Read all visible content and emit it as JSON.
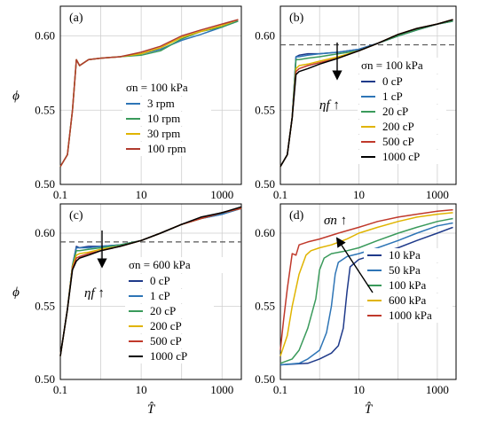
{
  "colors": {
    "grid": "#cfcfcf",
    "dashed": "#555555",
    "series_3rpm": "#2e75b6",
    "series_10rpm": "#3a9a5b",
    "series_30rpm": "#e0b400",
    "series_100rpm": "#b03a2e",
    "series_0cP": "#1f3a8a",
    "series_1cP": "#2e75b6",
    "series_20cP": "#3a9a5b",
    "series_200cP": "#e0b400",
    "series_500cP": "#c0392b",
    "series_1000cP": "#000000",
    "series_10kPa": "#1f3a8a",
    "series_50kPa": "#2e75b6",
    "series_100kPa": "#3a9a5b",
    "series_600kPa": "#e0b400",
    "series_1000kPa": "#c0392b"
  },
  "chart_data": [
    {
      "panel": "(a)",
      "type": "line",
      "xscale": "log",
      "xlim": [
        0.1,
        3000
      ],
      "ylim": [
        0.5,
        0.62
      ],
      "xticks": [
        "0.1",
        "10",
        "1000"
      ],
      "yticks": [
        "0.50",
        "0.55",
        "0.60"
      ],
      "ylabel": "ϕ",
      "xlabel": "",
      "legend_title": "σn = 100 kPa",
      "legend_position": "right-middle",
      "series": [
        {
          "name": "3 rpm",
          "color_key": "series_3rpm",
          "x": [
            0.1,
            0.15,
            0.2,
            0.25,
            0.3,
            0.5,
            1,
            3,
            10,
            30,
            100,
            300,
            1000,
            2500
          ],
          "y": [
            0.512,
            0.52,
            0.55,
            0.584,
            0.58,
            0.584,
            0.585,
            0.586,
            0.588,
            0.591,
            0.597,
            0.601,
            0.606,
            0.61
          ]
        },
        {
          "name": "10 rpm",
          "color_key": "series_10rpm",
          "x": [
            0.1,
            0.15,
            0.2,
            0.25,
            0.3,
            0.5,
            1,
            3,
            10,
            30,
            100,
            300,
            1000,
            2500
          ],
          "y": [
            0.512,
            0.52,
            0.55,
            0.584,
            0.58,
            0.584,
            0.585,
            0.586,
            0.587,
            0.59,
            0.598,
            0.603,
            0.606,
            0.61
          ]
        },
        {
          "name": "30 rpm",
          "color_key": "series_30rpm",
          "x": [
            0.1,
            0.15,
            0.2,
            0.25,
            0.3,
            0.5,
            1,
            3,
            10,
            30,
            100,
            300,
            1000,
            2500
          ],
          "y": [
            0.512,
            0.52,
            0.55,
            0.584,
            0.58,
            0.584,
            0.585,
            0.586,
            0.588,
            0.592,
            0.599,
            0.603,
            0.607,
            0.611
          ]
        },
        {
          "name": "100 rpm",
          "color_key": "series_100rpm",
          "x": [
            0.1,
            0.15,
            0.2,
            0.25,
            0.3,
            0.5,
            1,
            3,
            10,
            30,
            100,
            300,
            1000,
            2500
          ],
          "y": [
            0.512,
            0.52,
            0.55,
            0.584,
            0.58,
            0.584,
            0.585,
            0.586,
            0.589,
            0.593,
            0.6,
            0.604,
            0.608,
            0.611
          ]
        }
      ]
    },
    {
      "panel": "(b)",
      "type": "line",
      "xscale": "log",
      "xlim": [
        0.1,
        3000
      ],
      "ylim": [
        0.5,
        0.62
      ],
      "xticks": [
        "0.1",
        "10",
        "1000"
      ],
      "yticks": [
        "0.50",
        "0.55",
        "0.60"
      ],
      "dashed_y": 0.594,
      "legend_title": "σn = 100 kPa",
      "legend_position": "right-middle",
      "annotation": "ηf ↑",
      "series": [
        {
          "name": "0 cP",
          "color_key": "series_0cP",
          "x": [
            0.1,
            0.15,
            0.2,
            0.25,
            0.3,
            0.5,
            1,
            3,
            10,
            30,
            100,
            300,
            1000,
            2500
          ],
          "y": [
            0.512,
            0.52,
            0.545,
            0.586,
            0.587,
            0.588,
            0.588,
            0.589,
            0.591,
            0.595,
            0.6,
            0.604,
            0.608,
            0.61
          ]
        },
        {
          "name": "1 cP",
          "color_key": "series_1cP",
          "x": [
            0.1,
            0.15,
            0.2,
            0.25,
            0.3,
            0.5,
            1,
            3,
            10,
            30,
            100,
            300,
            1000,
            2500
          ],
          "y": [
            0.512,
            0.52,
            0.545,
            0.586,
            0.586,
            0.587,
            0.588,
            0.589,
            0.591,
            0.595,
            0.6,
            0.604,
            0.608,
            0.61
          ]
        },
        {
          "name": "20 cP",
          "color_key": "series_20cP",
          "x": [
            0.1,
            0.15,
            0.2,
            0.25,
            0.3,
            0.5,
            1,
            3,
            10,
            30,
            100,
            300,
            1000,
            2500
          ],
          "y": [
            0.512,
            0.52,
            0.545,
            0.584,
            0.584,
            0.585,
            0.586,
            0.588,
            0.59,
            0.595,
            0.6,
            0.604,
            0.608,
            0.61
          ]
        },
        {
          "name": "200 cP",
          "color_key": "series_200cP",
          "x": [
            0.1,
            0.15,
            0.2,
            0.25,
            0.3,
            0.5,
            1,
            3,
            10,
            30,
            100,
            300,
            1000,
            2500
          ],
          "y": [
            0.512,
            0.52,
            0.545,
            0.578,
            0.58,
            0.581,
            0.583,
            0.586,
            0.59,
            0.595,
            0.601,
            0.605,
            0.608,
            0.611
          ]
        },
        {
          "name": "500 cP",
          "color_key": "series_500cP",
          "x": [
            0.1,
            0.15,
            0.2,
            0.25,
            0.3,
            0.5,
            1,
            3,
            10,
            30,
            100,
            300,
            1000,
            2500
          ],
          "y": [
            0.512,
            0.52,
            0.545,
            0.576,
            0.578,
            0.58,
            0.582,
            0.585,
            0.59,
            0.595,
            0.601,
            0.605,
            0.608,
            0.611
          ]
        },
        {
          "name": "1000 cP",
          "color_key": "series_1000cP",
          "x": [
            0.1,
            0.15,
            0.2,
            0.25,
            0.3,
            0.5,
            1,
            3,
            10,
            30,
            100,
            300,
            1000,
            2500
          ],
          "y": [
            0.512,
            0.52,
            0.545,
            0.574,
            0.576,
            0.578,
            0.581,
            0.585,
            0.59,
            0.595,
            0.601,
            0.605,
            0.608,
            0.611
          ]
        }
      ]
    },
    {
      "panel": "(c)",
      "type": "line",
      "xscale": "log",
      "xlim": [
        0.1,
        3000
      ],
      "ylim": [
        0.5,
        0.62
      ],
      "xticks": [
        "0.1",
        "10",
        "1000"
      ],
      "yticks": [
        "0.50",
        "0.55",
        "0.60"
      ],
      "ylabel": "ϕ",
      "xlabel": "T̂",
      "dashed_y": 0.594,
      "legend_title": "σn = 600 kPa",
      "legend_position": "right-middle",
      "annotation": "ηf ↑",
      "series": [
        {
          "name": "0 cP",
          "color_key": "series_0cP",
          "x": [
            0.1,
            0.15,
            0.2,
            0.25,
            0.3,
            0.5,
            1,
            3,
            10,
            30,
            100,
            300,
            1000,
            3000
          ],
          "y": [
            0.516,
            0.548,
            0.578,
            0.591,
            0.59,
            0.591,
            0.591,
            0.592,
            0.595,
            0.6,
            0.606,
            0.61,
            0.613,
            0.617
          ]
        },
        {
          "name": "1 cP",
          "color_key": "series_1cP",
          "x": [
            0.1,
            0.15,
            0.2,
            0.25,
            0.3,
            0.5,
            1,
            3,
            10,
            30,
            100,
            300,
            1000,
            3000
          ],
          "y": [
            0.516,
            0.548,
            0.578,
            0.59,
            0.59,
            0.59,
            0.591,
            0.592,
            0.595,
            0.6,
            0.606,
            0.61,
            0.613,
            0.617
          ]
        },
        {
          "name": "20 cP",
          "color_key": "series_20cP",
          "x": [
            0.1,
            0.15,
            0.2,
            0.25,
            0.3,
            0.5,
            1,
            3,
            10,
            30,
            100,
            300,
            1000,
            3000
          ],
          "y": [
            0.516,
            0.548,
            0.578,
            0.588,
            0.588,
            0.589,
            0.59,
            0.592,
            0.595,
            0.6,
            0.606,
            0.61,
            0.614,
            0.617
          ]
        },
        {
          "name": "200 cP",
          "color_key": "series_200cP",
          "x": [
            0.1,
            0.15,
            0.2,
            0.25,
            0.3,
            0.5,
            1,
            3,
            10,
            30,
            100,
            300,
            1000,
            3000
          ],
          "y": [
            0.516,
            0.548,
            0.577,
            0.585,
            0.586,
            0.587,
            0.589,
            0.591,
            0.595,
            0.6,
            0.606,
            0.61,
            0.614,
            0.617
          ]
        },
        {
          "name": "500 cP",
          "color_key": "series_500cP",
          "x": [
            0.1,
            0.15,
            0.2,
            0.25,
            0.3,
            0.5,
            1,
            3,
            10,
            30,
            100,
            300,
            1000,
            3000
          ],
          "y": [
            0.516,
            0.548,
            0.576,
            0.583,
            0.584,
            0.586,
            0.588,
            0.591,
            0.595,
            0.6,
            0.606,
            0.61,
            0.614,
            0.617
          ]
        },
        {
          "name": "1000 cP",
          "color_key": "series_1000cP",
          "x": [
            0.1,
            0.15,
            0.2,
            0.25,
            0.3,
            0.5,
            1,
            3,
            10,
            30,
            100,
            300,
            1000,
            3000
          ],
          "y": [
            0.516,
            0.548,
            0.575,
            0.581,
            0.583,
            0.585,
            0.588,
            0.591,
            0.595,
            0.6,
            0.606,
            0.611,
            0.614,
            0.618
          ]
        }
      ]
    },
    {
      "panel": "(d)",
      "type": "line",
      "xscale": "log",
      "xlim": [
        0.1,
        3000
      ],
      "ylim": [
        0.5,
        0.62
      ],
      "xticks": [
        "0.1",
        "10",
        "1000"
      ],
      "yticks": [
        "0.50",
        "0.55",
        "0.60"
      ],
      "xlabel": "T̂",
      "legend_title": "",
      "legend_position": "right-middle",
      "annotation": "σn ↑",
      "series": [
        {
          "name": "10 kPa",
          "color_key": "series_10kPa",
          "x": [
            0.1,
            0.5,
            1,
            2,
            3,
            4,
            5,
            6,
            10,
            30,
            100,
            300,
            1000,
            2500
          ],
          "y": [
            0.51,
            0.511,
            0.514,
            0.518,
            0.523,
            0.535,
            0.56,
            0.577,
            0.582,
            0.586,
            0.59,
            0.595,
            0.6,
            0.604
          ]
        },
        {
          "name": "50 kPa",
          "color_key": "series_50kPa",
          "x": [
            0.1,
            0.3,
            0.5,
            1,
            1.5,
            2,
            2.5,
            3,
            5,
            10,
            30,
            100,
            300,
            1000,
            2500
          ],
          "y": [
            0.51,
            0.511,
            0.514,
            0.52,
            0.532,
            0.55,
            0.572,
            0.58,
            0.584,
            0.586,
            0.59,
            0.595,
            0.6,
            0.605,
            0.607
          ]
        },
        {
          "name": "100 kPa",
          "color_key": "series_100kPa",
          "x": [
            0.1,
            0.2,
            0.3,
            0.5,
            0.8,
            1,
            1.3,
            2,
            5,
            10,
            30,
            100,
            300,
            1000,
            2500
          ],
          "y": [
            0.511,
            0.514,
            0.52,
            0.535,
            0.555,
            0.575,
            0.583,
            0.586,
            0.588,
            0.59,
            0.595,
            0.6,
            0.604,
            0.608,
            0.61
          ]
        },
        {
          "name": "600 kPa",
          "color_key": "series_600kPa",
          "x": [
            0.1,
            0.15,
            0.2,
            0.3,
            0.45,
            0.6,
            1,
            2,
            5,
            10,
            30,
            100,
            300,
            1000,
            2500
          ],
          "y": [
            0.516,
            0.53,
            0.55,
            0.572,
            0.585,
            0.588,
            0.59,
            0.592,
            0.596,
            0.6,
            0.604,
            0.608,
            0.611,
            0.613,
            0.614
          ]
        },
        {
          "name": "1000 kPa",
          "color_key": "series_1000kPa",
          "x": [
            0.1,
            0.12,
            0.15,
            0.2,
            0.25,
            0.3,
            0.5,
            1,
            3,
            10,
            30,
            100,
            300,
            1000,
            2500
          ],
          "y": [
            0.52,
            0.54,
            0.562,
            0.586,
            0.585,
            0.592,
            0.594,
            0.596,
            0.6,
            0.604,
            0.608,
            0.611,
            0.613,
            0.615,
            0.616
          ]
        }
      ]
    }
  ]
}
